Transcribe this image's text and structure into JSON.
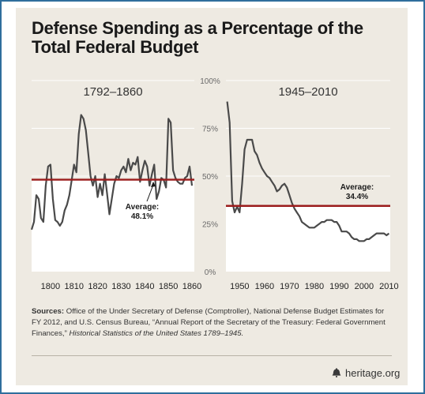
{
  "title": "Defense Spending as a Percentage of the Total Federal Budget",
  "sources": {
    "label": "Sources:",
    "text": " Office of the Under Secretary of Defense (Comptroller), National Defense Budget Estimates for FY 2012, and U.S. Census Bureau, “Annual Report of the Secretary of the Treasury: Federal Government Finances,” ",
    "italic": "Historical Statistics of the United States 1789–1945."
  },
  "footer": {
    "brand": "heritage.org",
    "icon": "liberty-bell-icon"
  },
  "colors": {
    "line": "#4a4a4a",
    "average": "#9b1c1c",
    "shade": "#ffffff",
    "background": "#eeeae2",
    "border": "#2f6e9c"
  },
  "chart_data": [
    {
      "type": "line",
      "title": "1792–1860",
      "ylim": [
        0,
        100
      ],
      "yticks": [
        "0%",
        "25%",
        "50%",
        "75%",
        "100%"
      ],
      "xticks": [
        "1800",
        "1810",
        "1820",
        "1830",
        "1840",
        "1850",
        "1860"
      ],
      "xlim": [
        1792,
        1861
      ],
      "average": {
        "value": 48.1,
        "label_line1": "Average:",
        "label_line2": "48.1%"
      },
      "series": [
        {
          "x": [
            1792,
            1793,
            1794,
            1795,
            1796,
            1797,
            1798,
            1799,
            1800,
            1801,
            1802,
            1803,
            1804,
            1805,
            1806,
            1807,
            1808,
            1809,
            1810,
            1811,
            1812,
            1813,
            1814,
            1815,
            1816,
            1817,
            1818,
            1819,
            1820,
            1821,
            1822,
            1823,
            1824,
            1825,
            1826,
            1827,
            1828,
            1829,
            1830,
            1831,
            1832,
            1833,
            1834,
            1835,
            1836,
            1837,
            1838,
            1839,
            1840,
            1841,
            1842,
            1843,
            1844,
            1845,
            1846,
            1847,
            1848,
            1849,
            1850,
            1851,
            1852,
            1853,
            1854,
            1855,
            1856,
            1857,
            1858,
            1859,
            1860
          ],
          "y": [
            22,
            26,
            40,
            38,
            28,
            26,
            45,
            55,
            56,
            38,
            27,
            26,
            24,
            26,
            32,
            35,
            40,
            48,
            56,
            52,
            72,
            82,
            80,
            74,
            62,
            50,
            45,
            50,
            39,
            46,
            40,
            51,
            41,
            30,
            38,
            46,
            50,
            49,
            53,
            55,
            52,
            59,
            53,
            57,
            56,
            60,
            47,
            53,
            58,
            55,
            45,
            51,
            56,
            38,
            42,
            49,
            48,
            44,
            80,
            78,
            53,
            49,
            47,
            46,
            46,
            49,
            50,
            55,
            45
          ]
        }
      ]
    },
    {
      "type": "line",
      "title": "1945–2010",
      "xticks": [
        "1950",
        "1960",
        "1970",
        "1980",
        "1990",
        "2000",
        "2010"
      ],
      "xlim": [
        1944.5,
        2010.5
      ],
      "ylim": [
        0,
        100
      ],
      "average": {
        "value": 34.4,
        "label_line1": "Average:",
        "label_line2": "34.4%"
      },
      "series": [
        {
          "x": [
            1945,
            1946,
            1947,
            1948,
            1949,
            1950,
            1951,
            1952,
            1953,
            1954,
            1955,
            1956,
            1957,
            1958,
            1959,
            1960,
            1961,
            1962,
            1963,
            1964,
            1965,
            1966,
            1967,
            1968,
            1969,
            1970,
            1971,
            1972,
            1973,
            1974,
            1975,
            1976,
            1977,
            1978,
            1979,
            1980,
            1981,
            1982,
            1983,
            1984,
            1985,
            1986,
            1987,
            1988,
            1989,
            1990,
            1991,
            1992,
            1993,
            1994,
            1995,
            1996,
            1997,
            1998,
            1999,
            2000,
            2001,
            2002,
            2003,
            2004,
            2005,
            2006,
            2007,
            2008,
            2009,
            2010
          ],
          "y": [
            89,
            78,
            37,
            31,
            34,
            31,
            46,
            64,
            69,
            69,
            69,
            63,
            61,
            57,
            54,
            52,
            50,
            49,
            47,
            45,
            42,
            43,
            45,
            46,
            44,
            40,
            36,
            33,
            31,
            29,
            26,
            25,
            24,
            23,
            23,
            23,
            24,
            25,
            26,
            26,
            27,
            27,
            27,
            26,
            26,
            24,
            21,
            21,
            21,
            20,
            18,
            17,
            17,
            16,
            16,
            16,
            17,
            17,
            18,
            19,
            20,
            20,
            20,
            20,
            19,
            20
          ]
        }
      ]
    }
  ]
}
